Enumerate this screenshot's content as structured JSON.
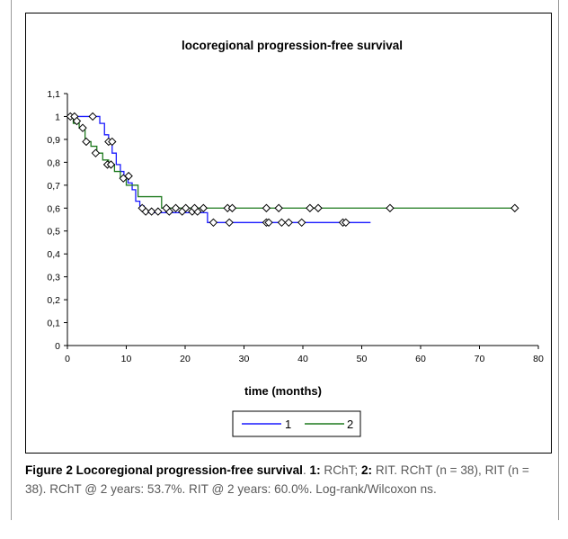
{
  "chart_data": {
    "type": "line",
    "step": true,
    "title": "locoregional progression-free survival",
    "xlabel": "time (months)",
    "ylabel": "",
    "xlim": [
      0,
      80
    ],
    "ylim": [
      0,
      1.1
    ],
    "x_ticks": [
      "0",
      "10",
      "20",
      "30",
      "40",
      "50",
      "60",
      "70",
      "80"
    ],
    "y_ticks": [
      "0",
      "0,1",
      "0,2",
      "0,3",
      "0,4",
      "0,5",
      "0,6",
      "0,7",
      "0,8",
      "0,9",
      "1",
      "1,1"
    ],
    "legend_position": "bottom",
    "series": [
      {
        "name": "1",
        "color": "#1a1aff",
        "x": [
          0,
          0.8,
          1.5,
          2.5,
          3.5,
          4.5,
          5.5,
          6.3,
          7,
          7.6,
          8.3,
          9,
          9.6,
          10.3,
          11,
          11.6,
          12.3,
          13,
          23.8,
          51.5
        ],
        "y": [
          1,
          1,
          1,
          1,
          1,
          1,
          0.97,
          0.92,
          0.89,
          0.84,
          0.79,
          0.76,
          0.74,
          0.71,
          0.68,
          0.63,
          0.61,
          0.58,
          0.537,
          0.537
        ],
        "censored": [
          [
            0.5,
            1
          ],
          [
            1.2,
            1
          ],
          [
            4.3,
            1
          ],
          [
            7,
            0.89
          ],
          [
            7.6,
            0.89
          ],
          [
            13.3,
            0.585
          ],
          [
            14.3,
            0.585
          ],
          [
            15.4,
            0.585
          ],
          [
            17.3,
            0.585
          ],
          [
            19.5,
            0.585
          ],
          [
            21.2,
            0.585
          ],
          [
            22.1,
            0.585
          ],
          [
            24.8,
            0.537
          ],
          [
            27.5,
            0.537
          ],
          [
            33.8,
            0.537
          ],
          [
            34.2,
            0.537
          ],
          [
            36.4,
            0.537
          ],
          [
            37.6,
            0.537
          ],
          [
            39.8,
            0.537
          ],
          [
            46.8,
            0.537
          ],
          [
            47.3,
            0.537
          ]
        ]
      },
      {
        "name": "2",
        "color": "#1e7a1e",
        "x": [
          0,
          1,
          2,
          3,
          4,
          5,
          6,
          7,
          8,
          9,
          10,
          11,
          12,
          16,
          76
        ],
        "y": [
          1,
          0.97,
          0.95,
          0.89,
          0.87,
          0.84,
          0.81,
          0.79,
          0.76,
          0.73,
          0.7,
          0.7,
          0.65,
          0.6,
          0.6
        ],
        "censored": [
          [
            1.6,
            0.98
          ],
          [
            2.6,
            0.95
          ],
          [
            3.2,
            0.89
          ],
          [
            4.8,
            0.84
          ],
          [
            6.8,
            0.79
          ],
          [
            7.4,
            0.79
          ],
          [
            9.5,
            0.73
          ],
          [
            10.4,
            0.74
          ],
          [
            12.7,
            0.6
          ],
          [
            16.8,
            0.6
          ],
          [
            18.4,
            0.6
          ],
          [
            20.1,
            0.6
          ],
          [
            21.6,
            0.6
          ],
          [
            23.1,
            0.6
          ],
          [
            27.2,
            0.6
          ],
          [
            28.0,
            0.6
          ],
          [
            33.8,
            0.6
          ],
          [
            35.9,
            0.6
          ],
          [
            41.2,
            0.6
          ],
          [
            42.6,
            0.6
          ],
          [
            54.8,
            0.6
          ],
          [
            76.0,
            0.6
          ]
        ]
      }
    ]
  },
  "caption": {
    "figure_label": "Figure 2 Locoregional progression-free survival",
    "s1_label": "1:",
    "s1_text": " RChT; ",
    "s2_label": "2:",
    "s2_text": " RIT. RChT (n = 38), RIT (n = 38). RChT @ 2 years: 53.7%. RIT @ 2 years: 60.0%. Log-rank/Wilcoxon ns."
  }
}
